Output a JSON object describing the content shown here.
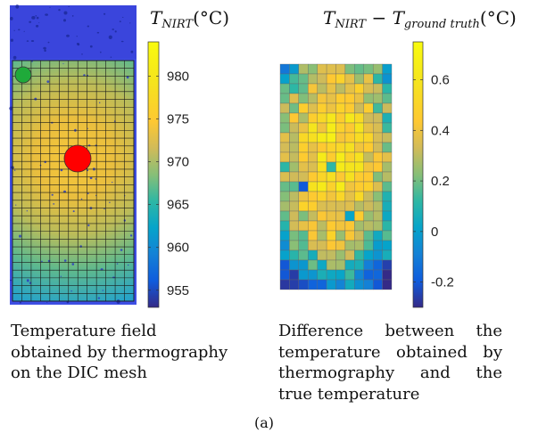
{
  "figure_label": "(a)",
  "chart_data": [
    {
      "type": "heatmap",
      "panel": "left",
      "title": "T_NIRT(°C)",
      "title_parts": {
        "base": "T",
        "sub": "NIRT",
        "unit": "(°C)"
      },
      "colorbar": {
        "ticks": [
          955,
          960,
          965,
          970,
          975,
          980
        ],
        "range": [
          953,
          984
        ]
      },
      "colormap": "parula",
      "mesh": {
        "rows": 31,
        "cols": 13
      },
      "field": {
        "peak_value": 983,
        "edge_value": 960
      },
      "markers": [
        {
          "name": "hot-spot",
          "color": "#ff0000",
          "label": ""
        },
        {
          "name": "reference-point",
          "color": "#1faa3a",
          "label": ""
        }
      ],
      "caption": [
        "Temperature field",
        "obtained by thermography",
        "on the DIC mesh"
      ]
    },
    {
      "type": "heatmap",
      "panel": "right",
      "title": "T_NIRT − T_ground truth(°C)",
      "title_parts": {
        "base1": "T",
        "sub1": "NIRT",
        "minus": " − ",
        "base2": "T",
        "sub2": "ground truth",
        "unit": "(°C)"
      },
      "colorbar": {
        "ticks": [
          -0.2,
          0,
          0.2,
          0.4,
          0.6
        ],
        "tick_labels": [
          "-0.2",
          "0",
          "0.2",
          "0.4",
          "0.6"
        ],
        "range": [
          -0.3,
          0.75
        ]
      },
      "colormap": "parula",
      "grid": {
        "rows": 23,
        "cols": 12
      },
      "outliers": [
        {
          "row": 10,
          "col": 5,
          "value": 0.12
        },
        {
          "row": 12,
          "col": 1,
          "value": 0.17
        },
        {
          "row": 12,
          "col": 2,
          "value": -0.2
        },
        {
          "row": 15,
          "col": 7,
          "value": 0.02
        }
      ],
      "caption": [
        "Difference between the",
        "temperature obtained by",
        "thermography and the",
        "true temperature"
      ]
    }
  ]
}
